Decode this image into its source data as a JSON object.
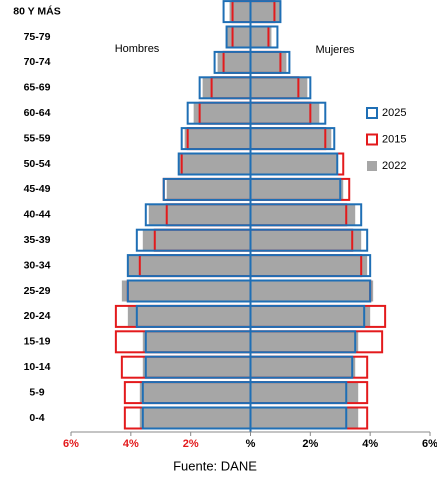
{
  "chart_data": {
    "type": "pyramid",
    "categories": [
      "0-4",
      "5-9",
      "10-14",
      "15-19",
      "20-24",
      "25-29",
      "30-34",
      "35-39",
      "40-44",
      "45-49",
      "50-54",
      "55-59",
      "60-64",
      "65-69",
      "70-74",
      "75-79",
      "80 Y MÁS"
    ],
    "left_label": "Hombres",
    "right_label": "Mujeres",
    "series": [
      {
        "name": "2022",
        "color": "#a6a6a6",
        "style": "fill",
        "male_values": [
          -3.7,
          -3.7,
          -3.6,
          -3.6,
          -4.1,
          -4.3,
          -4.1,
          -3.6,
          -3.4,
          -2.8,
          -2.4,
          -2.2,
          -1.9,
          -1.6,
          -1.1,
          -0.8,
          -0.7
        ],
        "female_values": [
          3.6,
          3.6,
          3.5,
          3.6,
          4.0,
          4.1,
          3.9,
          3.7,
          3.5,
          3.1,
          2.9,
          2.7,
          2.3,
          1.9,
          1.2,
          0.7,
          1.0
        ]
      },
      {
        "name": "2015",
        "color": "#e31a1c",
        "style": "outline",
        "male_values": [
          -4.2,
          -4.2,
          -4.3,
          -4.5,
          -4.5,
          -4.1,
          -3.7,
          -3.2,
          -2.8,
          -2.9,
          -2.3,
          -2.1,
          -1.7,
          -1.3,
          -0.9,
          -0.6,
          -0.6
        ],
        "female_values": [
          3.9,
          3.9,
          3.9,
          4.4,
          4.5,
          4.0,
          3.7,
          3.4,
          3.2,
          3.3,
          3.1,
          2.5,
          2.0,
          1.6,
          1.0,
          0.6,
          0.8
        ]
      },
      {
        "name": "2025",
        "color": "#1f6fb5",
        "style": "outline",
        "male_values": [
          -3.6,
          -3.6,
          -3.5,
          -3.5,
          -3.8,
          -4.1,
          -4.1,
          -3.8,
          -3.5,
          -2.9,
          -2.4,
          -2.3,
          -2.1,
          -1.7,
          -1.2,
          -0.8,
          -0.9
        ],
        "female_values": [
          3.2,
          3.2,
          3.4,
          3.5,
          3.8,
          4.0,
          4.0,
          3.9,
          3.7,
          3.0,
          2.9,
          2.8,
          2.5,
          2.0,
          1.3,
          0.9,
          1.0
        ]
      }
    ],
    "legend_order": [
      2,
      1,
      0
    ],
    "xlim": [
      -6,
      6
    ],
    "xticks": [
      {
        "value": -6,
        "label": "6%"
      },
      {
        "value": -4,
        "label": "4%"
      },
      {
        "value": -2,
        "label": "2%"
      },
      {
        "value": 0,
        "label": "%"
      },
      {
        "value": 2,
        "label": "2%"
      },
      {
        "value": 4,
        "label": "4%"
      },
      {
        "value": 6,
        "label": "6%"
      }
    ],
    "negative_tick_color": "#e31a1c",
    "axis_color": "#1f6fb5",
    "source": "Fuente: DANE"
  }
}
